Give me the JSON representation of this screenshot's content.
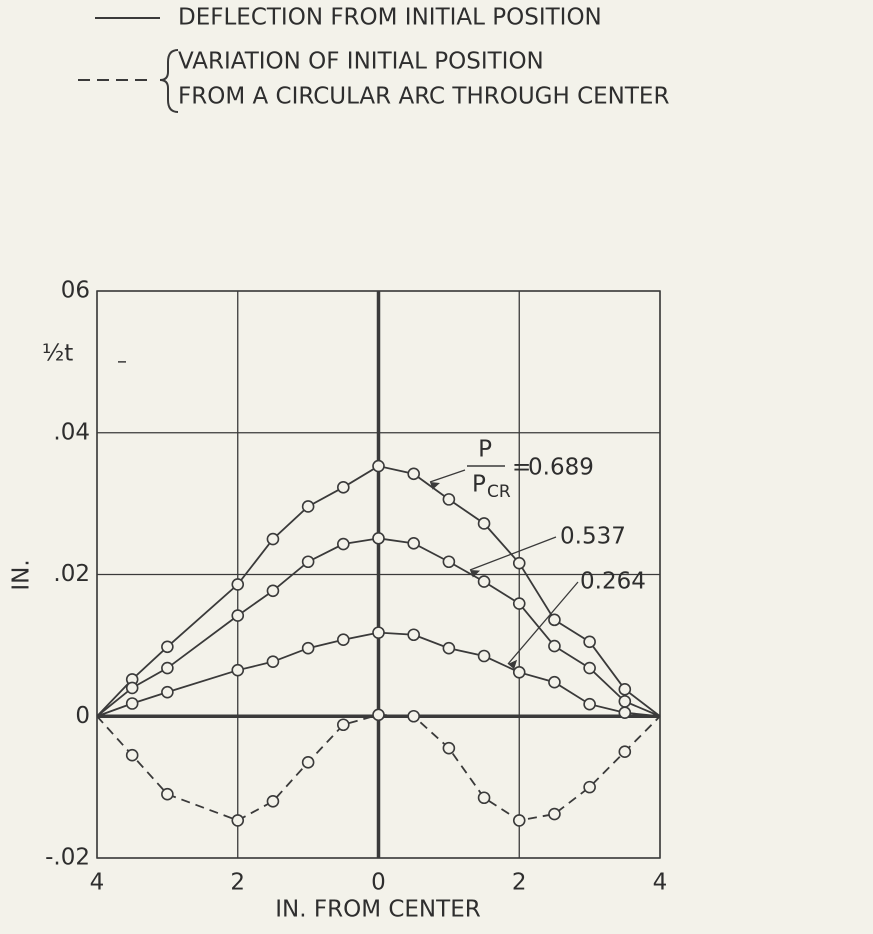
{
  "chart_data": {
    "type": "line",
    "legend": [
      {
        "text": [
          "DEFLECTION FROM INITIAL POSITION"
        ],
        "dash": false
      },
      {
        "text": [
          "VARIATION OF INITIAL POSITION",
          "FROM A CIRCULAR ARC THROUGH CENTER"
        ],
        "dash": true
      }
    ],
    "x_label": "IN. FROM CENTER",
    "y_label": "IN.",
    "ratio_label": {
      "numerator": "P",
      "denominator": "P",
      "subscript": "CR",
      "equals": "="
    },
    "y_annotation": {
      "label": "½t",
      "value": 0.05
    },
    "x": [
      -4,
      -3.5,
      -3,
      -2,
      -1.5,
      -1,
      -0.5,
      0,
      0.5,
      1,
      1.5,
      2,
      2.5,
      3,
      3.5,
      4
    ],
    "series": [
      {
        "name": "0.689",
        "color": "#3a3a3a",
        "dash": false,
        "values": [
          0,
          0.0052,
          0.0098,
          0.0186,
          0.025,
          0.0296,
          0.0323,
          0.0353,
          0.0342,
          0.0306,
          0.0272,
          0.0216,
          0.0136,
          0.0105,
          0.0038,
          0
        ]
      },
      {
        "name": "0.537",
        "color": "#3a3a3a",
        "dash": false,
        "values": [
          0,
          0.004,
          0.0068,
          0.0142,
          0.0177,
          0.0218,
          0.0243,
          0.0251,
          0.0244,
          0.0218,
          0.019,
          0.0159,
          0.0099,
          0.0068,
          0.0021,
          0
        ]
      },
      {
        "name": "0.264",
        "color": "#3a3a3a",
        "dash": false,
        "values": [
          0,
          0.0018,
          0.0034,
          0.0065,
          0.0077,
          0.0096,
          0.0108,
          0.0118,
          0.0115,
          0.0096,
          0.0085,
          0.0062,
          0.0048,
          0.0017,
          0.0005,
          0
        ]
      },
      {
        "color": "#3a3a3a",
        "dash": true,
        "values": [
          0,
          -0.0055,
          -0.011,
          -0.0147,
          -0.012,
          -0.0065,
          -0.0012,
          0.0002,
          0,
          -0.0045,
          -0.0115,
          -0.0147,
          -0.0138,
          -0.01,
          -0.005,
          0
        ]
      }
    ],
    "xlim": [
      -4,
      4
    ],
    "xticks": [
      {
        "value": -4,
        "label": "4"
      },
      {
        "value": -2,
        "label": "2"
      },
      0,
      2,
      4
    ],
    "ylim": [
      -0.02,
      0.06
    ],
    "yticks": [
      {
        "value": -0.02,
        "label": "-.02"
      },
      0,
      {
        "value": 0.02,
        "label": ".02"
      },
      {
        "value": 0.04,
        "label": ".04"
      },
      {
        "value": 0.06,
        "label": "06"
      }
    ],
    "grid": true
  }
}
